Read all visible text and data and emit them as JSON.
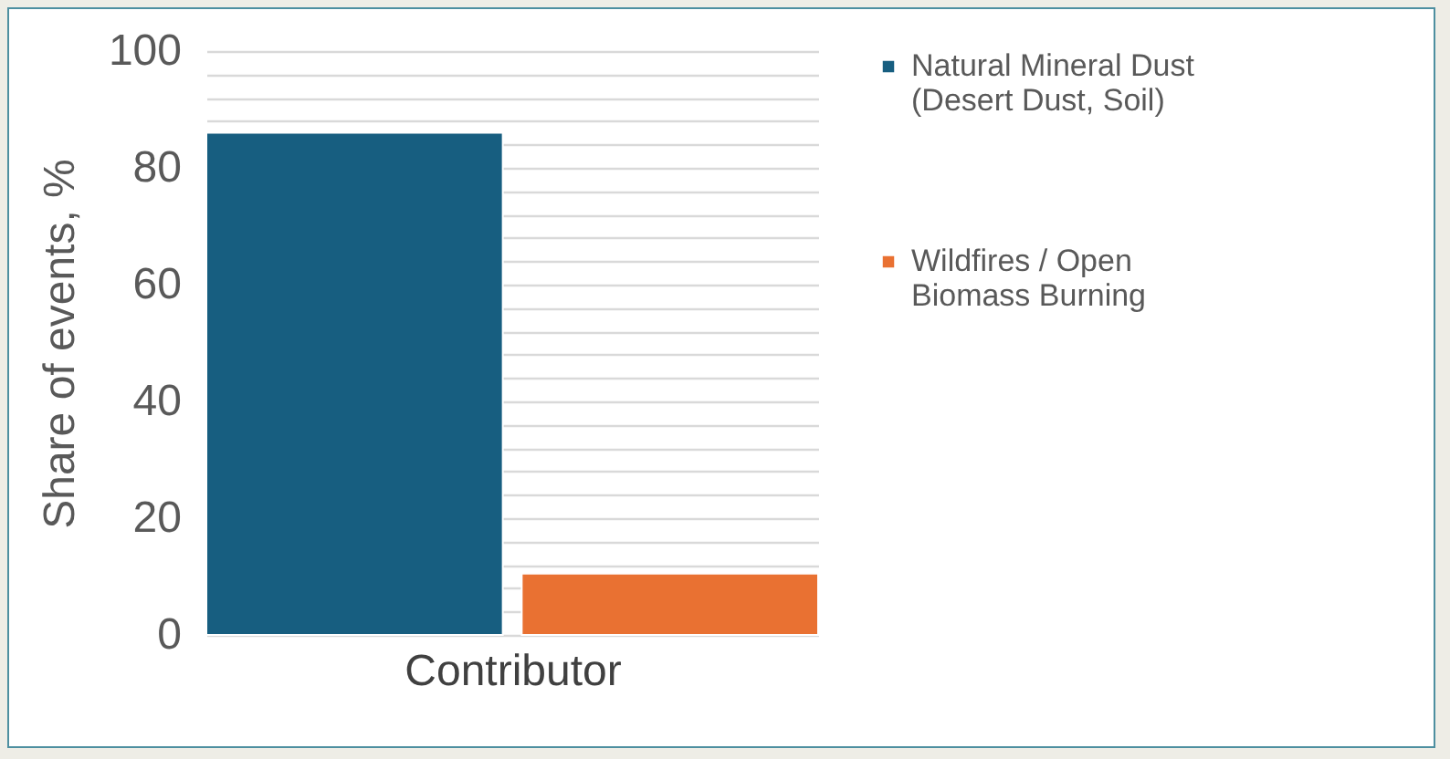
{
  "chart_data": {
    "type": "bar",
    "xlabel": "Contributor",
    "ylabel": "Share of events, %",
    "categories": [
      null
    ],
    "series": [
      {
        "name": "Natural Mineral Dust (Desert Dust, Soil)",
        "color": "#175e80",
        "values": [
          86
        ]
      },
      {
        "name": "Wildfires / Open Biomass Burning",
        "color": "#e97132",
        "values": [
          10.5
        ]
      }
    ],
    "ylim": [
      0,
      100
    ],
    "yticks": [
      0,
      {
        "value": 4,
        "label": null
      },
      {
        "value": 8,
        "label": null
      },
      {
        "value": 12,
        "label": null
      },
      {
        "value": 16,
        "label": null
      },
      20,
      {
        "value": 24,
        "label": null
      },
      {
        "value": 28,
        "label": null
      },
      {
        "value": 32,
        "label": null
      },
      {
        "value": 36,
        "label": null
      },
      40,
      {
        "value": 44,
        "label": null
      },
      {
        "value": 48,
        "label": null
      },
      {
        "value": 52,
        "label": null
      },
      {
        "value": 56,
        "label": null
      },
      60,
      {
        "value": 64,
        "label": null
      },
      {
        "value": 68,
        "label": null
      },
      {
        "value": 72,
        "label": null
      },
      {
        "value": 76,
        "label": null
      },
      80,
      {
        "value": 84,
        "label": null
      },
      {
        "value": 88,
        "label": null
      },
      {
        "value": 92,
        "label": null
      },
      {
        "value": 96,
        "label": null
      },
      100
    ],
    "grid": true,
    "legend": "right",
    "tick_labels": "y"
  }
}
